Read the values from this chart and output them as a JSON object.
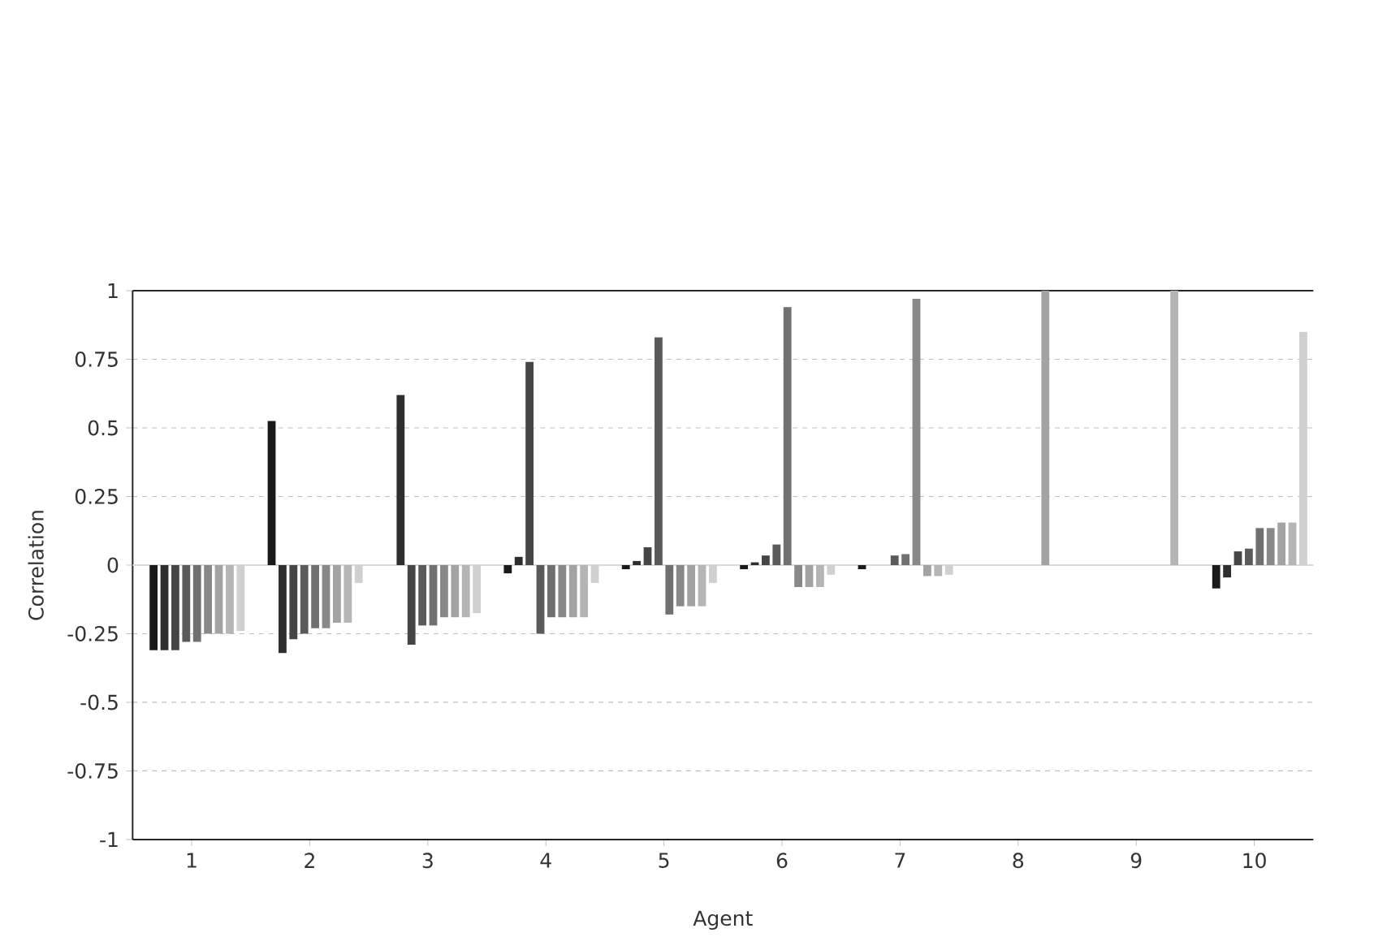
{
  "chart_data": {
    "type": "bar",
    "xlabel": "Agent",
    "ylabel": "Correlation",
    "categories": [
      "1",
      "2",
      "3",
      "4",
      "5",
      "6",
      "7",
      "8",
      "9",
      "10"
    ],
    "series": [
      {
        "color": "#0f0f0f",
        "values": [
          0,
          0,
          0,
          0,
          0,
          0,
          0,
          0,
          0,
          0
        ]
      },
      {
        "color": "#1a1a1a",
        "values": [
          -0.31,
          0.525,
          0,
          -0.03,
          -0.015,
          -0.015,
          -0.015,
          0,
          0,
          -0.085
        ]
      },
      {
        "color": "#2e2e2e",
        "values": [
          -0.31,
          -0.32,
          0.62,
          0.03,
          0.015,
          0.01,
          0,
          0,
          0,
          -0.045
        ]
      },
      {
        "color": "#454545",
        "values": [
          -0.31,
          -0.27,
          -0.29,
          0.74,
          0.065,
          0.035,
          0,
          0,
          0,
          0.05
        ]
      },
      {
        "color": "#5a5a5a",
        "values": [
          -0.28,
          -0.25,
          -0.22,
          -0.25,
          0.83,
          0.075,
          0.035,
          0,
          0,
          0.06
        ]
      },
      {
        "color": "#707070",
        "values": [
          -0.28,
          -0.23,
          -0.22,
          -0.19,
          -0.18,
          0.94,
          0.04,
          0,
          0,
          0.135
        ]
      },
      {
        "color": "#888888",
        "values": [
          -0.25,
          -0.23,
          -0.19,
          -0.19,
          -0.15,
          -0.08,
          0.97,
          0,
          0,
          0.135
        ]
      },
      {
        "color": "#a3a3a3",
        "values": [
          -0.25,
          -0.21,
          -0.19,
          -0.19,
          -0.15,
          -0.08,
          -0.04,
          1,
          0,
          0.155
        ]
      },
      {
        "color": "#b5b5b5",
        "values": [
          -0.25,
          -0.21,
          -0.19,
          -0.19,
          -0.15,
          -0.08,
          -0.04,
          0,
          1,
          0.155
        ]
      },
      {
        "color": "#d0d0d0",
        "values": [
          -0.24,
          -0.065,
          -0.175,
          -0.065,
          -0.065,
          -0.035,
          -0.035,
          0,
          0,
          0.85
        ]
      }
    ],
    "ylim": [
      -1,
      1
    ],
    "yticks": [
      -1,
      -0.75,
      -0.5,
      -0.25,
      0,
      0.25,
      0.5,
      0.75,
      1
    ],
    "grid": "y"
  }
}
